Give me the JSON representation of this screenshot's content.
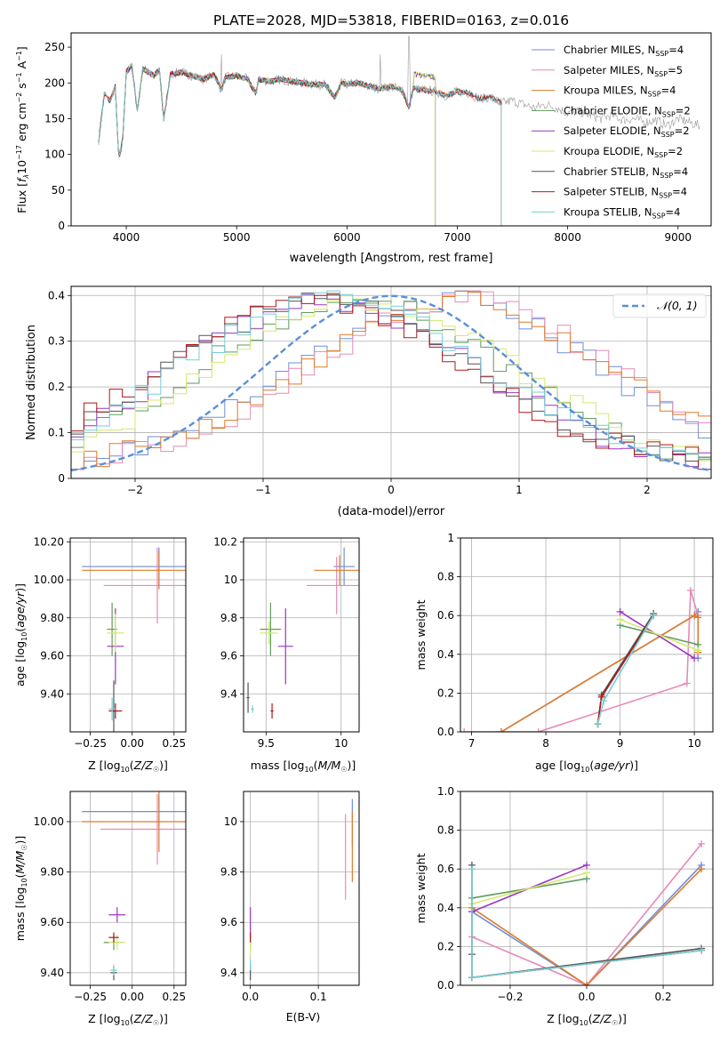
{
  "page": {
    "title": "PLATE=2028, MJD=53818, FIBERID=0163, z=0.016"
  },
  "colors": {
    "chabrier_miles": "#6f8fd8",
    "salpeter_miles": "#e58ab8",
    "kroupa_miles": "#e07b2a",
    "chabrier_elodie": "#5f9b5f",
    "salpeter_elodie": "#9b35c0",
    "kroupa_elodie": "#d5e86f",
    "chabrier_stelib": "#555555",
    "salpeter_stelib": "#b01818",
    "kroupa_stelib": "#74cfd6",
    "normal": "#5b8fd9"
  },
  "chart_data": [
    {
      "type": "line",
      "id": "spectrum",
      "title": "PLATE=2028, MJD=53818, FIBERID=0163, z=0.016",
      "xlabel": "wavelength [Angstrom, rest frame]",
      "ylabel": "Flux [fλ 10⁻¹⁷ erg cm⁻² s⁻¹ A⁻¹]",
      "xlim": [
        3500,
        9300
      ],
      "ylim": [
        0,
        270
      ],
      "xticks": [
        4000,
        5000,
        6000,
        7000,
        8000,
        9000
      ],
      "yticks": [
        0,
        50,
        100,
        150,
        200,
        250
      ],
      "legend": "top-right",
      "data_x": [
        3750,
        3800,
        3850,
        3900,
        3933,
        3968,
        4000,
        4050,
        4101,
        4150,
        4200,
        4250,
        4300,
        4340,
        4400,
        4500,
        4600,
        4700,
        4800,
        4861,
        4900,
        5000,
        5100,
        5175,
        5200,
        5300,
        5400,
        5500,
        5600,
        5700,
        5800,
        5890,
        5950,
        6000,
        6100,
        6200,
        6300,
        6400,
        6500,
        6563,
        6600,
        6700,
        6800,
        6900,
        7000,
        7100,
        7200,
        7300,
        7400,
        7500,
        7600,
        7700,
        7800,
        7900,
        8000,
        8100,
        8200,
        8300,
        8400,
        8500,
        8600,
        8700,
        8800,
        8900,
        9000,
        9100,
        9200
      ],
      "data_y": [
        120,
        185,
        175,
        195,
        95,
        120,
        215,
        225,
        160,
        220,
        215,
        210,
        218,
        150,
        212,
        215,
        210,
        205,
        212,
        190,
        208,
        210,
        205,
        185,
        205,
        202,
        205,
        202,
        200,
        198,
        198,
        180,
        200,
        198,
        200,
        195,
        192,
        195,
        190,
        165,
        192,
        190,
        188,
        182,
        188,
        186,
        178,
        180,
        172,
        175,
        170,
        165,
        170,
        165,
        158,
        160,
        155,
        150,
        155,
        148,
        150,
        145,
        148,
        140,
        150,
        145,
        140
      ],
      "model_ids": [
        "chabrier_miles",
        "salpeter_miles",
        "kroupa_miles",
        "chabrier_elodie",
        "salpeter_elodie",
        "kroupa_elodie",
        "chabrier_stelib",
        "salpeter_stelib",
        "kroupa_stelib"
      ],
      "legend_labels": [
        "Chabrier MILES, N_SSP=4",
        "Salpeter MILES, N_SSP=5",
        "Kroupa MILES, N_SSP=4",
        "Chabrier ELODIE, N_SSP=2",
        "Salpeter ELODIE, N_SSP=2",
        "Kroupa ELODIE, N_SSP=2",
        "Chabrier STELIB, N_SSP=4",
        "Salpeter STELIB, N_SSP=4",
        "Kroupa STELIB, N_SSP=4"
      ],
      "model_range": {
        "miles": [
          3750,
          7400
        ],
        "elodie": [
          3900,
          6800
        ],
        "stelib": [
          3750,
          7400
        ]
      }
    },
    {
      "type": "line",
      "id": "residuals",
      "xlabel": "(data-model)/error",
      "ylabel": "Normed distribution",
      "xlim": [
        -2.5,
        2.5
      ],
      "ylim": [
        0,
        0.42
      ],
      "xticks": [
        -2,
        -1,
        0,
        1,
        2
      ],
      "yticks": [
        0.0,
        0.1,
        0.2,
        0.3,
        0.4
      ],
      "legend": "top-right",
      "normal_label": "𝒩(0, 1)",
      "bin_width": 0.1,
      "histograms": [
        {
          "model": "chabrier_miles",
          "shift": 0.45
        },
        {
          "model": "salpeter_miles",
          "shift": 0.55
        },
        {
          "model": "kroupa_miles",
          "shift": 0.5
        },
        {
          "model": "chabrier_elodie",
          "shift": -0.3
        },
        {
          "model": "salpeter_elodie",
          "shift": -0.5
        },
        {
          "model": "kroupa_elodie",
          "shift": -0.2
        },
        {
          "model": "chabrier_stelib",
          "shift": -0.55
        },
        {
          "model": "salpeter_stelib",
          "shift": -0.6
        },
        {
          "model": "kroupa_stelib",
          "shift": -0.45
        }
      ]
    },
    {
      "type": "scatter",
      "id": "age_vs_Z",
      "xlabel": "Z [log10(Z/Z☉)]",
      "ylabel": "age [log10(age/yr)]",
      "xlim": [
        -0.37,
        0.32
      ],
      "ylim": [
        9.2,
        10.22
      ],
      "xticks": [
        -0.25,
        0.0,
        0.25
      ],
      "yticks": [
        9.4,
        9.6,
        9.8,
        10.0,
        10.2
      ],
      "points": [
        {
          "model": "chabrier_miles",
          "x": 0.16,
          "y": 10.07,
          "xerr": 0.46,
          "yerr": 0.1
        },
        {
          "model": "salpeter_miles",
          "x": 0.15,
          "y": 9.97,
          "xerr": 0.32,
          "yerr": 0.2
        },
        {
          "model": "kroupa_miles",
          "x": 0.16,
          "y": 10.05,
          "xerr": 0.46,
          "yerr": 0.1
        },
        {
          "model": "chabrier_elodie",
          "x": -0.12,
          "y": 9.74,
          "xerr": 0.03,
          "yerr": 0.14
        },
        {
          "model": "salpeter_elodie",
          "x": -0.1,
          "y": 9.65,
          "xerr": 0.05,
          "yerr": 0.2
        },
        {
          "model": "kroupa_elodie",
          "x": -0.1,
          "y": 9.72,
          "xerr": 0.05,
          "yerr": 0.1
        },
        {
          "model": "chabrier_stelib",
          "x": -0.11,
          "y": 9.31,
          "xerr": 0.02,
          "yerr": 0.16
        },
        {
          "model": "salpeter_stelib",
          "x": -0.1,
          "y": 9.31,
          "xerr": 0.04,
          "yerr": 0.04
        },
        {
          "model": "kroupa_stelib",
          "x": -0.12,
          "y": 9.32,
          "xerr": 0.02,
          "yerr": 0.06
        }
      ]
    },
    {
      "type": "scatter",
      "id": "age_vs_mass",
      "xlabel": "mass [log10(M/M☉)]",
      "ylabel": "",
      "xlim": [
        9.35,
        10.12
      ],
      "ylim": [
        9.2,
        10.22
      ],
      "xticks": [
        9.5,
        10.0
      ],
      "yticks": [
        9.4,
        9.6,
        9.8,
        10.0,
        10.2
      ],
      "points": [
        {
          "model": "chabrier_miles",
          "x": 10.02,
          "y": 10.07,
          "xerr": 0.07,
          "yerr": 0.1
        },
        {
          "model": "salpeter_miles",
          "x": 9.97,
          "y": 9.97,
          "xerr": 0.2,
          "yerr": 0.15
        },
        {
          "model": "kroupa_miles",
          "x": 9.99,
          "y": 10.05,
          "xerr": 0.17,
          "yerr": 0.08
        },
        {
          "model": "chabrier_elodie",
          "x": 9.53,
          "y": 9.74,
          "xerr": 0.07,
          "yerr": 0.14
        },
        {
          "model": "salpeter_elodie",
          "x": 9.63,
          "y": 9.65,
          "xerr": 0.05,
          "yerr": 0.2
        },
        {
          "model": "kroupa_elodie",
          "x": 9.52,
          "y": 9.72,
          "xerr": 0.06,
          "yerr": 0.06
        },
        {
          "model": "chabrier_stelib",
          "x": 9.38,
          "y": 9.38,
          "xerr": 0.01,
          "yerr": 0.08
        },
        {
          "model": "salpeter_stelib",
          "x": 9.54,
          "y": 9.31,
          "xerr": 0.01,
          "yerr": 0.04
        },
        {
          "model": "kroupa_stelib",
          "x": 9.41,
          "y": 9.32,
          "xerr": 0.01,
          "yerr": 0.02
        }
      ]
    },
    {
      "type": "line",
      "id": "mass_weight_vs_age",
      "xlabel": "age [log10(age/yr)]",
      "ylabel": "mass weight",
      "xlim": [
        6.85,
        10.25
      ],
      "ylim": [
        0,
        1.0
      ],
      "xticks": [
        7,
        8,
        9,
        10
      ],
      "yticks": [
        0.0,
        0.2,
        0.4,
        0.6,
        0.8,
        1.0
      ],
      "series": [
        {
          "model": "chabrier_miles",
          "x": [
            7.4,
            10.0,
            10.05,
            10.05
          ],
          "y": [
            0.0,
            0.6,
            0.62,
            0.38
          ]
        },
        {
          "model": "salpeter_miles",
          "x": [
            6.9,
            7.9,
            9.9,
            9.95,
            10.05
          ],
          "y": [
            0.0,
            0.0,
            0.25,
            0.73,
            0.6
          ]
        },
        {
          "model": "kroupa_miles",
          "x": [
            7.4,
            10.0,
            10.05,
            10.05
          ],
          "y": [
            0.0,
            0.6,
            0.59,
            0.41
          ]
        },
        {
          "model": "chabrier_elodie",
          "x": [
            9.0,
            10.05
          ],
          "y": [
            0.55,
            0.45
          ]
        },
        {
          "model": "salpeter_elodie",
          "x": [
            9.0,
            10.0
          ],
          "y": [
            0.62,
            0.38
          ]
        },
        {
          "model": "kroupa_elodie",
          "x": [
            9.0,
            10.05
          ],
          "y": [
            0.58,
            0.42
          ]
        },
        {
          "model": "chabrier_stelib",
          "x": [
            8.7,
            8.75,
            9.45
          ],
          "y": [
            0.04,
            0.19,
            0.61
          ]
        },
        {
          "model": "salpeter_stelib",
          "x": [
            8.7,
            8.75,
            9.45
          ],
          "y": [
            0.04,
            0.18,
            0.6
          ]
        },
        {
          "model": "kroupa_stelib",
          "x": [
            8.7,
            8.78,
            9.45
          ],
          "y": [
            0.04,
            0.16,
            0.6
          ]
        }
      ]
    },
    {
      "type": "scatter",
      "id": "mass_vs_Z",
      "xlabel": "Z [log10(Z/Z☉)]",
      "ylabel": "mass [log10(M/M☉)]",
      "xlim": [
        -0.37,
        0.32
      ],
      "ylim": [
        9.35,
        10.12
      ],
      "xticks": [
        -0.25,
        0.0,
        0.25
      ],
      "yticks": [
        9.4,
        9.6,
        9.8,
        10.0
      ],
      "points": [
        {
          "model": "chabrier_miles",
          "x": 0.16,
          "y": 10.04,
          "xerr": 0.46,
          "yerr": 0.06
        },
        {
          "model": "salpeter_miles",
          "x": 0.15,
          "y": 9.97,
          "xerr": 0.34,
          "yerr": 0.14
        },
        {
          "model": "kroupa_miles",
          "x": 0.16,
          "y": 10.0,
          "xerr": 0.46,
          "yerr": 0.12
        },
        {
          "model": "chabrier_elodie",
          "x": -0.11,
          "y": 9.52,
          "xerr": 0.06,
          "yerr": 0.03
        },
        {
          "model": "salpeter_elodie",
          "x": -0.09,
          "y": 9.63,
          "xerr": 0.05,
          "yerr": 0.03
        },
        {
          "model": "kroupa_elodie",
          "x": -0.09,
          "y": 9.52,
          "xerr": 0.05,
          "yerr": 0.03
        },
        {
          "model": "chabrier_stelib",
          "x": -0.11,
          "y": 9.4,
          "xerr": 0.02,
          "yerr": 0.03
        },
        {
          "model": "salpeter_stelib",
          "x": -0.11,
          "y": 9.54,
          "xerr": 0.03,
          "yerr": 0.02
        },
        {
          "model": "kroupa_stelib",
          "x": -0.11,
          "y": 9.41,
          "xerr": 0.02,
          "yerr": 0.02
        }
      ]
    },
    {
      "type": "scatter",
      "id": "mass_vs_ebv",
      "xlabel": "E(B-V)",
      "ylabel": "",
      "xlim": [
        -0.01,
        0.16
      ],
      "ylim": [
        9.35,
        10.12
      ],
      "xticks": [
        0.0,
        0.1
      ],
      "yticks": [
        9.4,
        9.6,
        9.8,
        10.0
      ],
      "points": [
        {
          "model": "chabrier_miles",
          "x": 0.15,
          "y": 10.0,
          "xerr": 0,
          "yerr": 0.09
        },
        {
          "model": "salpeter_miles",
          "x": 0.14,
          "y": 9.86,
          "xerr": 0,
          "yerr": 0.17
        },
        {
          "model": "kroupa_miles",
          "x": 0.15,
          "y": 9.9,
          "xerr": 0,
          "yerr": 0.14
        },
        {
          "model": "chabrier_elodie",
          "x": 0.0,
          "y": 9.52,
          "xerr": 0,
          "yerr": 0.03
        },
        {
          "model": "salpeter_elodie",
          "x": 0.0,
          "y": 9.6,
          "xerr": 0,
          "yerr": 0.06
        },
        {
          "model": "kroupa_elodie",
          "x": 0.0,
          "y": 9.5,
          "xerr": 0,
          "yerr": 0.03
        },
        {
          "model": "chabrier_stelib",
          "x": 0.0,
          "y": 9.4,
          "xerr": 0,
          "yerr": 0.03
        },
        {
          "model": "salpeter_stelib",
          "x": 0.0,
          "y": 9.54,
          "xerr": 0,
          "yerr": 0.02
        },
        {
          "model": "kroupa_stelib",
          "x": 0.0,
          "y": 9.43,
          "xerr": 0,
          "yerr": 0.02
        }
      ]
    },
    {
      "type": "line",
      "id": "mass_weight_vs_Z",
      "xlabel": "Z [log10(Z/Z☉)]",
      "ylabel": "mass weight",
      "xlim": [
        -0.33,
        0.33
      ],
      "ylim": [
        0,
        1.0
      ],
      "xticks": [
        -0.2,
        0.0,
        0.2
      ],
      "yticks": [
        0.0,
        0.2,
        0.4,
        0.6,
        0.8,
        1.0
      ],
      "series": [
        {
          "model": "chabrier_miles",
          "x": [
            -0.3,
            0.0,
            0.3
          ],
          "y": [
            0.38,
            0.0,
            0.62
          ]
        },
        {
          "model": "salpeter_miles",
          "x": [
            -0.3,
            0.0,
            0.3
          ],
          "y": [
            0.25,
            0.0,
            0.73
          ]
        },
        {
          "model": "kroupa_miles",
          "x": [
            -0.3,
            0.0,
            0.3
          ],
          "y": [
            0.4,
            0.0,
            0.6
          ]
        },
        {
          "model": "chabrier_elodie",
          "x": [
            -0.3,
            0.0
          ],
          "y": [
            0.45,
            0.55
          ]
        },
        {
          "model": "salpeter_elodie",
          "x": [
            -0.3,
            0.0
          ],
          "y": [
            0.38,
            0.62
          ]
        },
        {
          "model": "kroupa_elodie",
          "x": [
            -0.3,
            0.0
          ],
          "y": [
            0.42,
            0.58
          ]
        },
        {
          "model": "chabrier_stelib",
          "x": [
            -0.3,
            -0.3,
            -0.3,
            0.3
          ],
          "y": [
            0.62,
            0.16,
            0.04,
            0.19
          ]
        },
        {
          "model": "salpeter_stelib",
          "x": [
            -0.3,
            0.3
          ],
          "y": [
            0.04,
            0.18
          ]
        },
        {
          "model": "kroupa_stelib",
          "x": [
            -0.3,
            -0.3,
            0.3
          ],
          "y": [
            0.6,
            0.04,
            0.18
          ]
        }
      ]
    }
  ]
}
